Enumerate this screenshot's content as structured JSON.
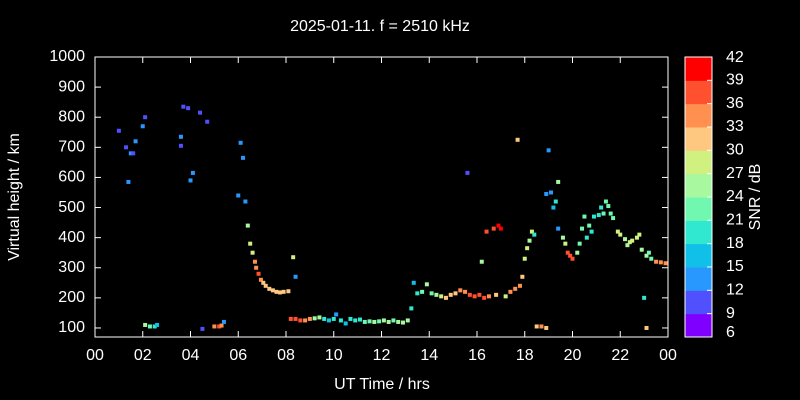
{
  "chart_data": {
    "type": "scatter",
    "title": "2025-01-11. f = 2510 kHz",
    "xlabel": "UT Time / hrs",
    "ylabel": "Virtual height / km",
    "colorbar_label": "SNR / dB",
    "xlim": [
      0,
      24
    ],
    "xticks": [
      {
        "value": 0,
        "label": "00"
      },
      {
        "value": 2,
        "label": "02"
      },
      {
        "value": 4,
        "label": "04"
      },
      {
        "value": 6,
        "label": "06"
      },
      {
        "value": 8,
        "label": "08"
      },
      10,
      12,
      14,
      16,
      18,
      20,
      22,
      {
        "value": 24,
        "label": "00"
      }
    ],
    "ylim": [
      70,
      1000
    ],
    "yticks": [
      100,
      200,
      300,
      400,
      500,
      600,
      700,
      800,
      900,
      1000
    ],
    "clim": [
      6,
      42
    ],
    "cticks": [
      6,
      9,
      12,
      15,
      18,
      21,
      24,
      27,
      30,
      33,
      36,
      39,
      42
    ],
    "colorscale": [
      "#8000ff",
      "#5050ff",
      "#2898ff",
      "#10c0e8",
      "#30e8d0",
      "#70f8b0",
      "#a8f8a0",
      "#d0f080",
      "#ffc880",
      "#ff9050",
      "#ff5030",
      "#ff0000"
    ],
    "x": [
      1.0,
      1.3,
      1.4,
      1.5,
      1.6,
      1.7,
      2.0,
      2.1,
      2.1,
      2.3,
      2.5,
      2.6,
      3.6,
      3.6,
      3.7,
      3.9,
      4.0,
      4.1,
      4.4,
      4.7,
      4.5,
      5.0,
      5.2,
      5.3,
      5.4,
      6.0,
      6.1,
      6.2,
      6.3,
      6.4,
      6.5,
      6.6,
      6.7,
      6.75,
      6.85,
      6.95,
      7.05,
      7.15,
      7.3,
      7.45,
      7.6,
      7.75,
      7.9,
      8.1,
      8.3,
      8.4,
      8.2,
      8.4,
      8.6,
      8.8,
      9.0,
      9.2,
      9.4,
      9.6,
      9.8,
      10.0,
      10.1,
      10.3,
      10.5,
      10.7,
      10.9,
      11.1,
      11.3,
      11.5,
      11.7,
      11.9,
      12.1,
      12.3,
      12.5,
      12.7,
      12.9,
      13.1,
      13.25,
      13.35,
      13.5,
      13.7,
      13.9,
      14.1,
      14.3,
      14.5,
      14.7,
      14.9,
      15.1,
      15.3,
      15.5,
      15.6,
      15.7,
      15.9,
      16.1,
      16.2,
      16.3,
      16.4,
      16.5,
      16.7,
      16.8,
      16.9,
      17.0,
      17.2,
      17.4,
      17.6,
      17.8,
      17.7,
      17.9,
      18.0,
      18.1,
      18.2,
      18.3,
      18.4,
      18.5,
      18.7,
      18.9,
      18.9,
      19.0,
      19.1,
      19.2,
      19.3,
      19.4,
      19.4,
      19.6,
      19.7,
      19.8,
      19.9,
      20.0,
      20.2,
      20.3,
      20.4,
      20.5,
      20.6,
      20.7,
      20.8,
      20.9,
      21.1,
      21.2,
      21.3,
      21.4,
      21.5,
      21.6,
      21.7,
      21.9,
      22.0,
      22.2,
      22.3,
      22.4,
      22.5,
      22.7,
      22.8,
      22.9,
      23.0,
      23.1,
      23.2,
      23.3,
      23.5,
      23.7,
      23.9,
      23.1
    ],
    "y": [
      755,
      700,
      585,
      680,
      680,
      720,
      770,
      800,
      110,
      105,
      105,
      110,
      705,
      735,
      835,
      830,
      590,
      615,
      815,
      785,
      97,
      105,
      105,
      108,
      120,
      540,
      715,
      665,
      520,
      440,
      380,
      350,
      320,
      300,
      280,
      260,
      250,
      240,
      230,
      225,
      220,
      218,
      220,
      222,
      335,
      270,
      130,
      130,
      125,
      125,
      130,
      132,
      135,
      130,
      125,
      130,
      145,
      125,
      115,
      130,
      125,
      128,
      120,
      122,
      120,
      122,
      125,
      120,
      125,
      120,
      118,
      125,
      165,
      250,
      215,
      220,
      245,
      215,
      210,
      205,
      200,
      210,
      215,
      225,
      220,
      615,
      210,
      205,
      210,
      320,
      200,
      420,
      205,
      430,
      210,
      440,
      430,
      205,
      220,
      230,
      240,
      725,
      270,
      330,
      365,
      390,
      420,
      410,
      105,
      105,
      100,
      545,
      690,
      550,
      500,
      520,
      430,
      585,
      400,
      380,
      350,
      340,
      330,
      350,
      380,
      430,
      470,
      400,
      440,
      420,
      470,
      475,
      500,
      480,
      520,
      505,
      480,
      465,
      420,
      410,
      395,
      375,
      385,
      390,
      400,
      410,
      360,
      200,
      340,
      350,
      330,
      320,
      318,
      315,
      100
    ],
    "snr": [
      11,
      11,
      12,
      12,
      11,
      12,
      12,
      11,
      24,
      22,
      20,
      16,
      11,
      12,
      11,
      11,
      12,
      14,
      11,
      11,
      11,
      34,
      36,
      33,
      12,
      12,
      13,
      12,
      14,
      24,
      27,
      29,
      33,
      35,
      36,
      33,
      31,
      32,
      32,
      31,
      31,
      30,
      30,
      30,
      29,
      14,
      38,
      36,
      37,
      34,
      33,
      26,
      24,
      20,
      17,
      20,
      14,
      18,
      15,
      18,
      20,
      19,
      21,
      23,
      25,
      23,
      24,
      24,
      22,
      25,
      26,
      26,
      18,
      16,
      19,
      22,
      24,
      23,
      26,
      28,
      30,
      30,
      32,
      33,
      34,
      10,
      36,
      38,
      37,
      24,
      38,
      37,
      34,
      37,
      31,
      40,
      39,
      29,
      33,
      34,
      33,
      32,
      30,
      28,
      27,
      24,
      29,
      20,
      30,
      33,
      30,
      12,
      12,
      14,
      16,
      18,
      13,
      24,
      25,
      28,
      36,
      37,
      38,
      26,
      21,
      22,
      23,
      20,
      21,
      19,
      20,
      20,
      19,
      21,
      22,
      23,
      21,
      22,
      27,
      28,
      24,
      26,
      27,
      28,
      28,
      28,
      26,
      20,
      24,
      22,
      23,
      33,
      34,
      33,
      30
    ]
  }
}
